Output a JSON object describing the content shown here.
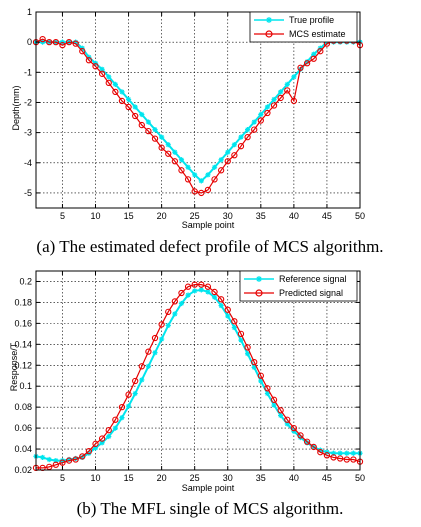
{
  "chart_data": [
    {
      "type": "line",
      "caption": "(a) The estimated defect profile of MCS algorithm.",
      "xlabel": "Sample point",
      "ylabel": "Depth(mm)",
      "xlim": [
        1,
        50
      ],
      "ylim": [
        -5.5,
        1
      ],
      "xticks": [
        5,
        10,
        15,
        20,
        25,
        30,
        35,
        40,
        45,
        50
      ],
      "yticks": [
        -5,
        -4,
        -3,
        -2,
        -1,
        0,
        1
      ],
      "grid": true,
      "legend_position": "top-right",
      "x": [
        1,
        2,
        3,
        4,
        5,
        6,
        7,
        8,
        9,
        10,
        11,
        12,
        13,
        14,
        15,
        16,
        17,
        18,
        19,
        20,
        21,
        22,
        23,
        24,
        25,
        26,
        27,
        28,
        29,
        30,
        31,
        32,
        33,
        34,
        35,
        36,
        37,
        38,
        39,
        40,
        41,
        42,
        43,
        44,
        45,
        46,
        47,
        48,
        49,
        50
      ],
      "series": [
        {
          "name": "True profile",
          "color": "#00e5ee",
          "marker": "star",
          "values": [
            0,
            0,
            0,
            0,
            0,
            0,
            0,
            -0.2,
            -0.5,
            -0.7,
            -0.9,
            -1.15,
            -1.4,
            -1.65,
            -1.9,
            -2.15,
            -2.4,
            -2.65,
            -2.9,
            -3.15,
            -3.4,
            -3.65,
            -3.9,
            -4.15,
            -4.4,
            -4.6,
            -4.4,
            -4.15,
            -3.9,
            -3.65,
            -3.4,
            -3.15,
            -2.9,
            -2.65,
            -2.4,
            -2.15,
            -1.9,
            -1.65,
            -1.4,
            -1.15,
            -0.9,
            -0.65,
            -0.4,
            -0.2,
            0,
            0,
            0,
            0,
            0,
            0
          ]
        },
        {
          "name": "MCS estimate",
          "color": "#e60000",
          "marker": "circle",
          "values": [
            0,
            0.1,
            0,
            0,
            -0.1,
            0,
            -0.05,
            -0.3,
            -0.6,
            -0.8,
            -1.05,
            -1.35,
            -1.65,
            -1.95,
            -2.15,
            -2.45,
            -2.75,
            -2.95,
            -3.2,
            -3.5,
            -3.7,
            -3.95,
            -4.25,
            -4.55,
            -4.95,
            -5.0,
            -4.9,
            -4.55,
            -4.25,
            -3.95,
            -3.75,
            -3.45,
            -3.15,
            -2.9,
            -2.6,
            -2.35,
            -2.1,
            -1.85,
            -1.6,
            -1.95,
            -0.85,
            -0.7,
            -0.55,
            -0.3,
            -0.05,
            0.05,
            0.05,
            0.05,
            0.05,
            -0.1
          ]
        }
      ]
    },
    {
      "type": "line",
      "caption": "(b) The MFL single of MCS algorithm.",
      "xlabel": "Sample point",
      "ylabel": "Response/T",
      "xlim": [
        1,
        50
      ],
      "ylim": [
        0.02,
        0.21
      ],
      "xticks": [
        5,
        10,
        15,
        20,
        25,
        30,
        35,
        40,
        45,
        50
      ],
      "yticks": [
        0.02,
        0.04,
        0.06,
        0.08,
        0.1,
        0.12,
        0.14,
        0.16,
        0.18,
        0.2
      ],
      "ytick_labels": [
        "0.02",
        "0.04",
        "0.06",
        "0.08",
        "0.1",
        "0.12",
        "0.14",
        "0.16",
        "0.18",
        "0.2"
      ],
      "grid": true,
      "legend_position": "top-right",
      "x": [
        1,
        2,
        3,
        4,
        5,
        6,
        7,
        8,
        9,
        10,
        11,
        12,
        13,
        14,
        15,
        16,
        17,
        18,
        19,
        20,
        21,
        22,
        23,
        24,
        25,
        26,
        27,
        28,
        29,
        30,
        31,
        32,
        33,
        34,
        35,
        36,
        37,
        38,
        39,
        40,
        41,
        42,
        43,
        44,
        45,
        46,
        47,
        48,
        49,
        50
      ],
      "series": [
        {
          "name": "Reference signal",
          "color": "#00e5ee",
          "marker": "star",
          "values": [
            0.033,
            0.032,
            0.03,
            0.029,
            0.029,
            0.03,
            0.031,
            0.032,
            0.036,
            0.041,
            0.046,
            0.052,
            0.06,
            0.07,
            0.081,
            0.093,
            0.106,
            0.119,
            0.132,
            0.145,
            0.158,
            0.169,
            0.179,
            0.187,
            0.191,
            0.192,
            0.19,
            0.185,
            0.177,
            0.167,
            0.156,
            0.144,
            0.131,
            0.118,
            0.105,
            0.093,
            0.082,
            0.072,
            0.064,
            0.057,
            0.051,
            0.046,
            0.042,
            0.039,
            0.037,
            0.036,
            0.036,
            0.036,
            0.036,
            0.036
          ]
        },
        {
          "name": "Predicted signal",
          "color": "#e60000",
          "marker": "circle",
          "values": [
            0.022,
            0.022,
            0.023,
            0.025,
            0.027,
            0.029,
            0.03,
            0.033,
            0.038,
            0.045,
            0.05,
            0.058,
            0.068,
            0.08,
            0.092,
            0.105,
            0.119,
            0.133,
            0.146,
            0.159,
            0.171,
            0.181,
            0.189,
            0.195,
            0.197,
            0.197,
            0.195,
            0.19,
            0.183,
            0.173,
            0.162,
            0.15,
            0.137,
            0.123,
            0.11,
            0.098,
            0.087,
            0.077,
            0.068,
            0.06,
            0.053,
            0.047,
            0.042,
            0.037,
            0.034,
            0.032,
            0.031,
            0.03,
            0.03,
            0.028
          ]
        }
      ]
    }
  ]
}
